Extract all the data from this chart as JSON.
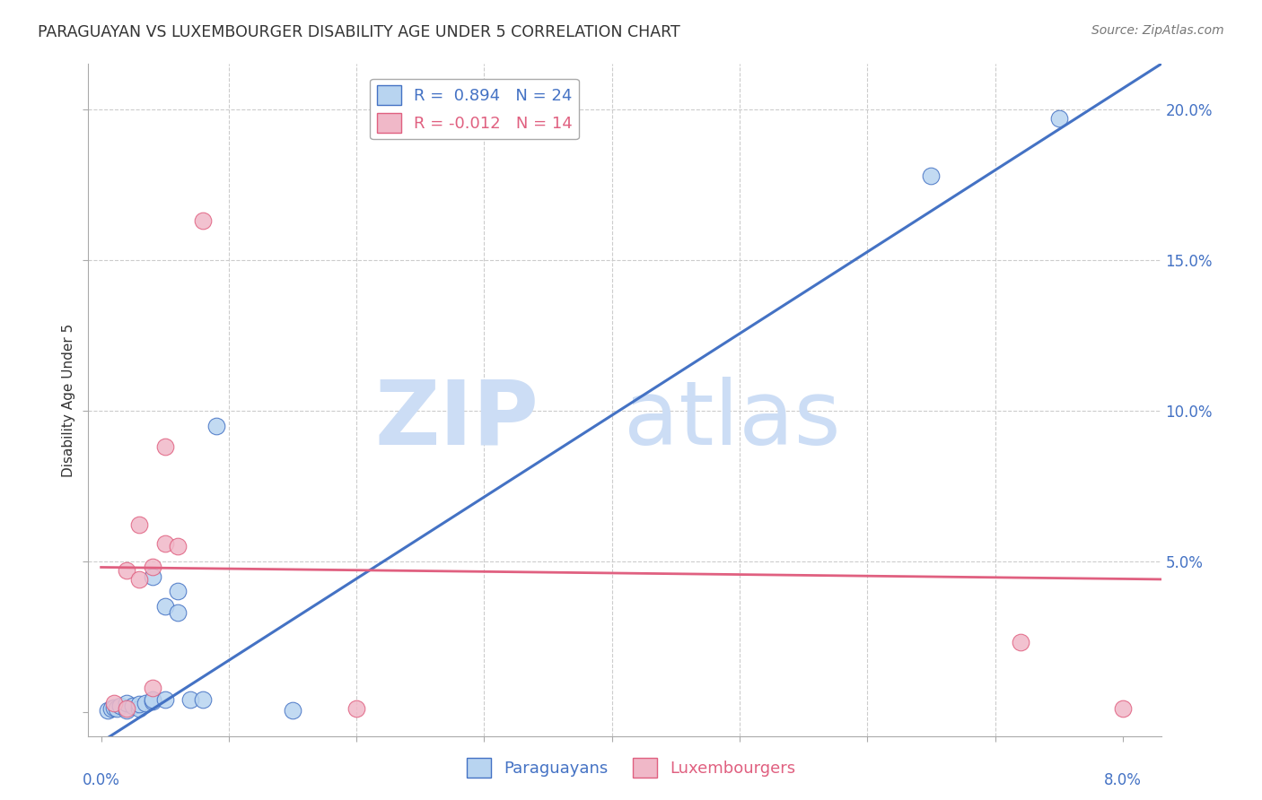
{
  "title": "PARAGUAYAN VS LUXEMBOURGER DISABILITY AGE UNDER 5 CORRELATION CHART",
  "source": "Source: ZipAtlas.com",
  "ylabel": "Disability Age Under 5",
  "paraguayan_R": 0.894,
  "paraguayan_N": 24,
  "luxembourger_R": -0.012,
  "luxembourger_N": 14,
  "paraguayan_color": "#b8d4f0",
  "paraguayan_line_color": "#4472c4",
  "luxembourger_color": "#f0b8c8",
  "luxembourger_line_color": "#e06080",
  "paraguayan_points": [
    [
      0.0005,
      0.0005
    ],
    [
      0.0008,
      0.001
    ],
    [
      0.001,
      0.0015
    ],
    [
      0.0012,
      0.001
    ],
    [
      0.0015,
      0.002
    ],
    [
      0.002,
      0.0005
    ],
    [
      0.002,
      0.003
    ],
    [
      0.0025,
      0.002
    ],
    [
      0.003,
      0.001
    ],
    [
      0.003,
      0.0025
    ],
    [
      0.0035,
      0.003
    ],
    [
      0.004,
      0.0035
    ],
    [
      0.004,
      0.004
    ],
    [
      0.004,
      0.045
    ],
    [
      0.005,
      0.004
    ],
    [
      0.005,
      0.035
    ],
    [
      0.006,
      0.033
    ],
    [
      0.006,
      0.04
    ],
    [
      0.007,
      0.004
    ],
    [
      0.008,
      0.004
    ],
    [
      0.009,
      0.095
    ],
    [
      0.015,
      0.0005
    ],
    [
      0.065,
      0.178
    ],
    [
      0.075,
      0.197
    ]
  ],
  "luxembourger_points": [
    [
      0.001,
      0.003
    ],
    [
      0.002,
      0.001
    ],
    [
      0.002,
      0.047
    ],
    [
      0.003,
      0.044
    ],
    [
      0.003,
      0.062
    ],
    [
      0.004,
      0.048
    ],
    [
      0.004,
      0.008
    ],
    [
      0.005,
      0.056
    ],
    [
      0.005,
      0.088
    ],
    [
      0.006,
      0.055
    ],
    [
      0.008,
      0.163
    ],
    [
      0.02,
      0.001
    ],
    [
      0.072,
      0.023
    ],
    [
      0.08,
      0.001
    ]
  ],
  "par_line_x0": 0.0,
  "par_line_y0": -0.01,
  "par_line_x1": 0.083,
  "par_line_y1": 0.215,
  "lux_line_x0": 0.0,
  "lux_line_y0": 0.048,
  "lux_line_x1": 0.083,
  "lux_line_y1": 0.044,
  "xmin": -0.001,
  "xmax": 0.083,
  "ymin": -0.008,
  "ymax": 0.215,
  "grid_color": "#cccccc",
  "background_color": "#ffffff"
}
